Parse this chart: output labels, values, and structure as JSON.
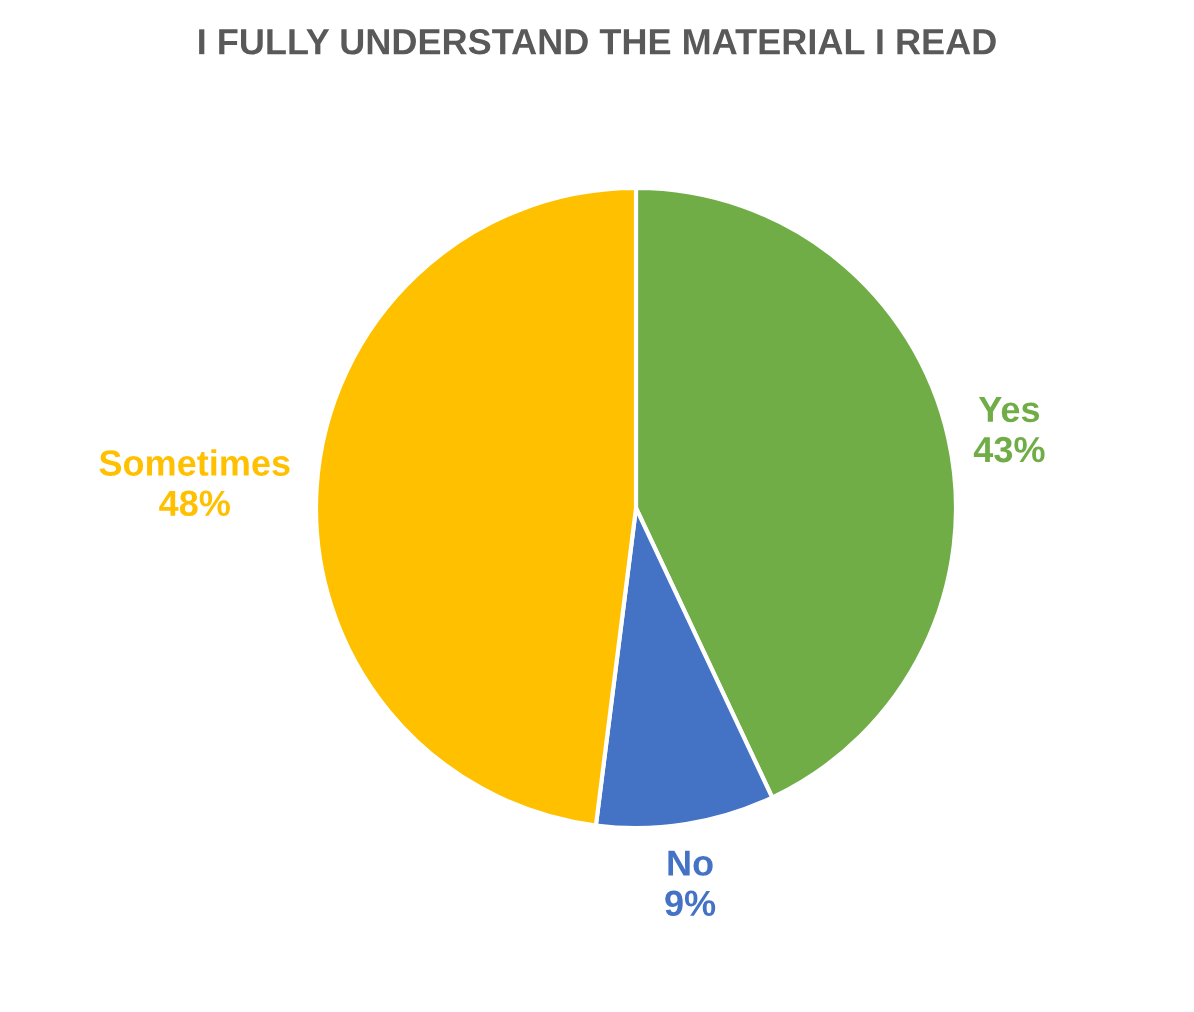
{
  "chart_data": {
    "type": "pie",
    "title": "I FULLY UNDERSTAND THE MATERIAL I READ",
    "categories": [
      "Yes",
      "No",
      "Sometimes"
    ],
    "values": [
      43,
      9,
      48
    ],
    "colors": [
      "#70ad47",
      "#4472c4",
      "#ffc000"
    ],
    "value_labels": [
      "43%",
      "9%",
      "48%"
    ],
    "legend": false
  }
}
